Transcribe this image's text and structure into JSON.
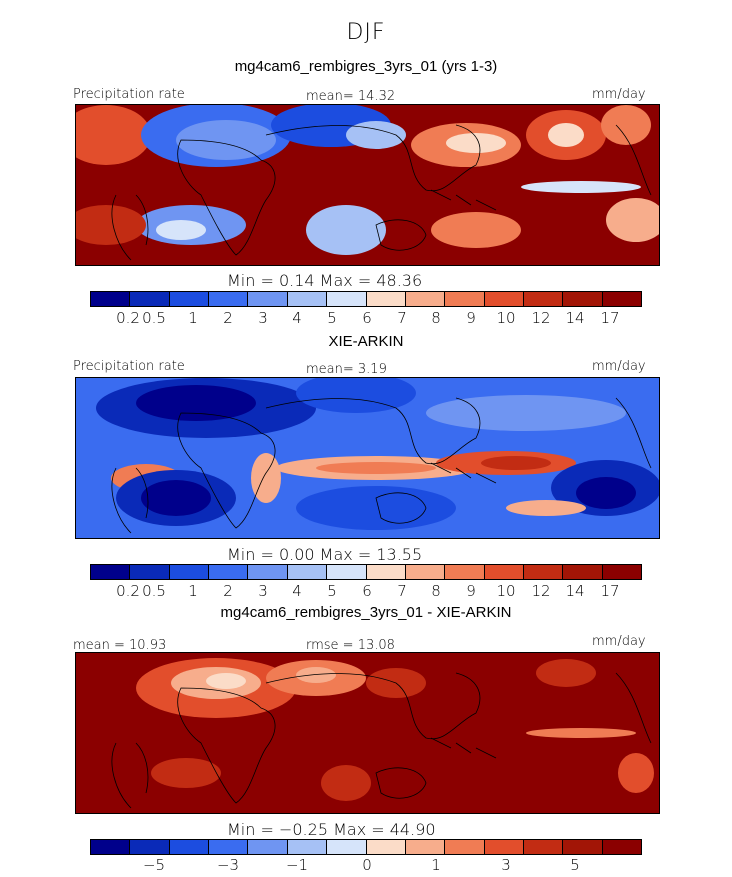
{
  "season": "DJF",
  "colors": [
    "#00008b",
    "#0a2ab8",
    "#1c4de0",
    "#3a6cf0",
    "#6f95f2",
    "#a6c1f5",
    "#d6e4fa",
    "#fbdcc8",
    "#f7ad8c",
    "#f07c54",
    "#e24e2c",
    "#c22c13",
    "#a21506",
    "#8b0000"
  ],
  "panels": [
    {
      "title": "mg4cam6_rembigres_3yrs_01 (yrs 1-3)",
      "left_label": "Precipitation rate",
      "center_label": "mean=  14.32",
      "units": "mm/day",
      "minmax": "Min =     0.14  Max =   48.36",
      "ticks": [
        "0.2",
        "0.5",
        "1",
        "2",
        "3",
        "4",
        "5",
        "6",
        "7",
        "8",
        "9",
        "10",
        "12",
        "14",
        "17"
      ]
    },
    {
      "title": "XIE-ARKIN",
      "left_label": "Precipitation rate",
      "center_label": "mean=    3.19",
      "units": "mm/day",
      "minmax": "Min =     0.00  Max =   13.55",
      "ticks": [
        "0.2",
        "0.5",
        "1",
        "2",
        "3",
        "4",
        "5",
        "6",
        "7",
        "8",
        "9",
        "10",
        "12",
        "14",
        "17"
      ]
    },
    {
      "title": "mg4cam6_rembigres_3yrs_01 - XIE-ARKIN",
      "left_label": "mean =   10.93",
      "center_label": "rmse =   13.08",
      "units": "mm/day",
      "minmax": "Min =   −0.25  Max =   44.90",
      "ticks": [
        "−5",
        "−3",
        "−1",
        "0",
        "1",
        "3",
        "5"
      ]
    }
  ]
}
